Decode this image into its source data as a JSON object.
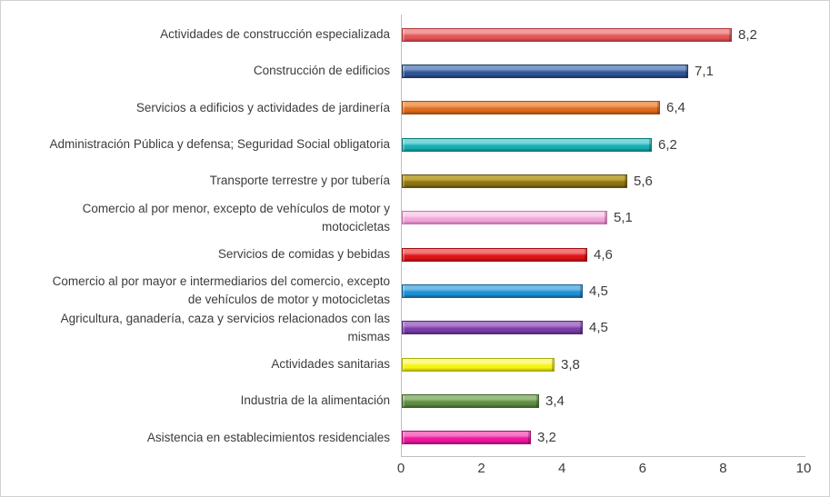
{
  "chart_data": {
    "type": "bar",
    "orientation": "horizontal",
    "title": "",
    "xlabel": "",
    "ylabel": "",
    "xlim": [
      0,
      10
    ],
    "x_ticks": [
      "0",
      "2",
      "4",
      "6",
      "8",
      "10"
    ],
    "grid": false,
    "legend": false,
    "axis_line_color": "#bfbfbf",
    "text_color": "#3c3c3c",
    "background_color": "#ffffff",
    "bars": [
      {
        "label_lines": [
          "Actividades de construcción especializada"
        ],
        "value": 8.2,
        "value_label": "8,2",
        "color": {
          "base": "#e25558",
          "dark": "#a93a3d",
          "light": "#f49c9d"
        }
      },
      {
        "label_lines": [
          "Construcción de edificios"
        ],
        "value": 7.1,
        "value_label": "7,1",
        "color": {
          "base": "#2f5597",
          "dark": "#1e3660",
          "light": "#7e9cc9"
        }
      },
      {
        "label_lines": [
          "Servicios a edificios y actividades de jardinería"
        ],
        "value": 6.4,
        "value_label": "6,4",
        "color": {
          "base": "#dd6b1d",
          "dark": "#9e4d13",
          "light": "#f1a368"
        }
      },
      {
        "label_lines": [
          "Administración Pública y defensa; Seguridad Social obligatoria"
        ],
        "value": 6.2,
        "value_label": "6,2",
        "color": {
          "base": "#16afb3",
          "dark": "#0d7a7d",
          "light": "#7ed8da"
        }
      },
      {
        "label_lines": [
          "Transporte terrestre y por tubería"
        ],
        "value": 5.6,
        "value_label": "5,6",
        "color": {
          "base": "#8c7413",
          "dark": "#5e4e0d",
          "light": "#c2ab42"
        }
      },
      {
        "label_lines": [
          "Comercio al por menor, excepto de vehículos de motor y",
          "motocicletas"
        ],
        "value": 5.1,
        "value_label": "5,1",
        "color": {
          "base": "#f0a6d8",
          "dark": "#c473ab",
          "light": "#fad4ec"
        }
      },
      {
        "label_lines": [
          "Servicios de comidas y bebidas"
        ],
        "value": 4.6,
        "value_label": "4,6",
        "color": {
          "base": "#de1418",
          "dark": "#9e0e11",
          "light": "#f3797b"
        }
      },
      {
        "label_lines": [
          "Comercio al por mayor e intermediarios del comercio, excepto",
          "de vehículos de motor y motocicletas"
        ],
        "value": 4.5,
        "value_label": "4,5",
        "color": {
          "base": "#1e8fd5",
          "dark": "#135f8e",
          "light": "#74bde9"
        }
      },
      {
        "label_lines": [
          "Agricultura, ganadería, caza y servicios relacionados con las",
          "mismas"
        ],
        "value": 4.5,
        "value_label": "4,5",
        "color": {
          "base": "#7a3da8",
          "dark": "#532973",
          "light": "#af81cd"
        }
      },
      {
        "label_lines": [
          "Actividades sanitarias"
        ],
        "value": 3.8,
        "value_label": "3,8",
        "color": {
          "base": "#f6f40d",
          "dark": "#abaa09",
          "light": "#fbfa90"
        }
      },
      {
        "label_lines": [
          "Industria de la alimentación"
        ],
        "value": 3.4,
        "value_label": "3,4",
        "color": {
          "base": "#5e8c40",
          "dark": "#3f5e2b",
          "light": "#9abe83"
        }
      },
      {
        "label_lines": [
          "Asistencia en establecimientos residenciales"
        ],
        "value": 3.2,
        "value_label": "3,2",
        "color": {
          "base": "#ef169e",
          "dark": "#a80f73",
          "light": "#f87cc6"
        }
      }
    ]
  }
}
